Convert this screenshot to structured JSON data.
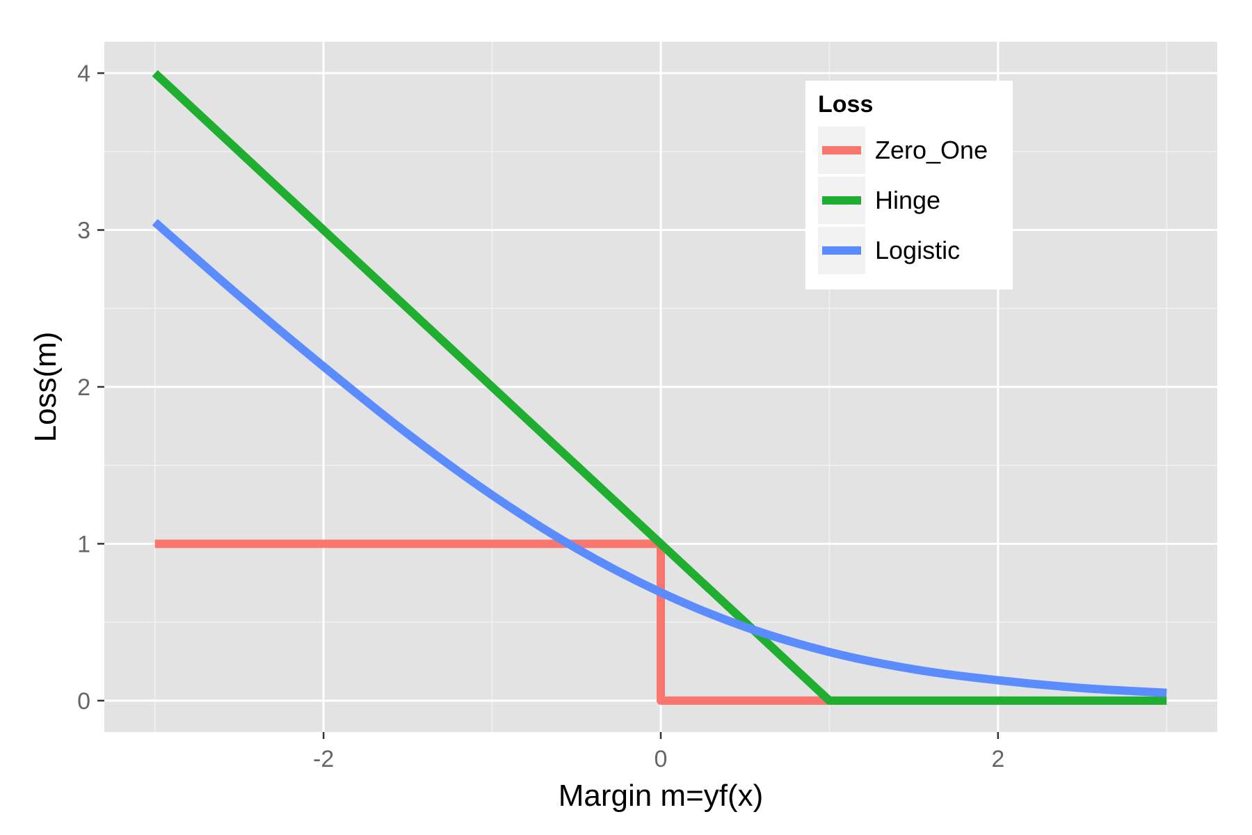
{
  "chart_data": {
    "type": "line",
    "title": "",
    "xlabel": "Margin m=yf(x)",
    "ylabel": "Loss(m)",
    "xlim": [
      -3.3,
      3.3
    ],
    "ylim": [
      -0.2,
      4.2
    ],
    "xticks": [
      -2,
      0,
      2
    ],
    "xtick_labels": [
      "-2",
      "0",
      "2"
    ],
    "yticks": [
      0,
      1,
      2,
      3,
      4
    ],
    "ytick_labels": [
      "0",
      "1",
      "2",
      "3",
      "4"
    ],
    "grid": true,
    "legend_position": "top-right",
    "legend_title": "Loss",
    "series": [
      {
        "name": "Zero_One",
        "color": "#F8766D",
        "x": [
          -3,
          0,
          0,
          1
        ],
        "y": [
          1,
          1,
          0,
          0
        ]
      },
      {
        "name": "Hinge",
        "color": "#1FAE2F",
        "x": [
          -3,
          1,
          3
        ],
        "y": [
          4,
          0,
          0
        ]
      },
      {
        "name": "Logistic",
        "color": "#5B8CFF",
        "x": [
          -3,
          -2.5,
          -2,
          -1.5,
          -1,
          -0.5,
          0,
          0.5,
          1,
          1.5,
          2,
          2.5,
          3
        ],
        "y": [
          3.05,
          2.58,
          2.13,
          1.7,
          1.31,
          0.97,
          0.69,
          0.47,
          0.31,
          0.2,
          0.13,
          0.08,
          0.05
        ]
      }
    ]
  }
}
